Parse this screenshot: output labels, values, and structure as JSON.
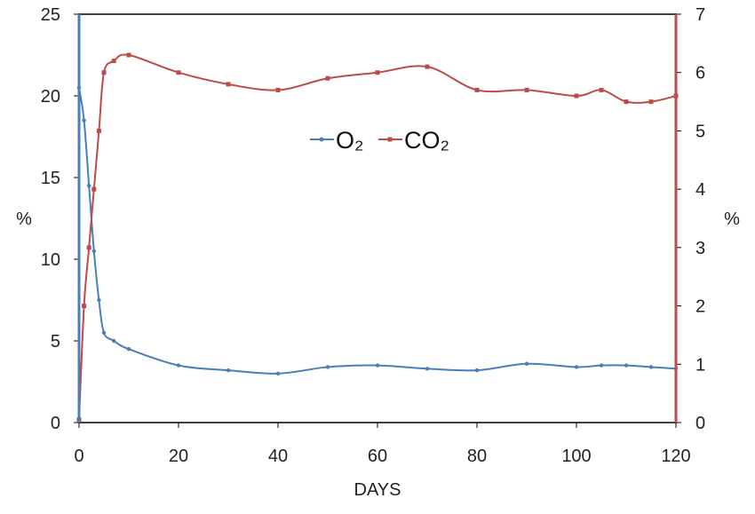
{
  "chart_data": {
    "type": "line",
    "title": "",
    "xlabel": "DAYS",
    "ylabel_left": "%",
    "ylabel_right": "%",
    "xlim": [
      0,
      120
    ],
    "ylim_left": [
      0,
      25
    ],
    "ylim_right": [
      0,
      7
    ],
    "x_ticks": [
      "0",
      "20",
      "40",
      "60",
      "80",
      "100",
      "120"
    ],
    "y_ticks_left": [
      "0",
      "5",
      "10",
      "15",
      "20",
      "25"
    ],
    "y_ticks_right": [
      "0",
      "1",
      "2",
      "3",
      "4",
      "5",
      "6",
      "7"
    ],
    "grid": false,
    "legend_position": "center",
    "series": [
      {
        "name": "O₂",
        "axis": "left",
        "color": "#4a7ebb",
        "x": [
          0,
          0,
          1,
          2,
          3,
          4,
          5,
          7,
          10,
          20,
          30,
          40,
          50,
          60,
          70,
          80,
          90,
          100,
          105,
          110,
          115,
          120
        ],
        "y": [
          25,
          20.5,
          18.5,
          14.5,
          10.5,
          7.5,
          5.5,
          5.0,
          4.5,
          3.5,
          3.2,
          3.0,
          3.4,
          3.5,
          3.3,
          3.2,
          3.6,
          3.4,
          3.5,
          3.5,
          3.4,
          3.3
        ]
      },
      {
        "name": "CO₂",
        "axis": "right",
        "color": "#be4b48",
        "x": [
          0,
          1,
          2,
          3,
          4,
          5,
          7,
          10,
          20,
          30,
          40,
          50,
          60,
          70,
          80,
          90,
          100,
          105,
          110,
          115,
          120
        ],
        "y": [
          0.05,
          2.0,
          3.0,
          4.0,
          5.0,
          6.0,
          6.2,
          6.3,
          6.0,
          5.8,
          5.7,
          5.9,
          6.0,
          6.1,
          5.7,
          5.7,
          5.6,
          5.7,
          5.5,
          5.5,
          5.6
        ]
      }
    ]
  }
}
